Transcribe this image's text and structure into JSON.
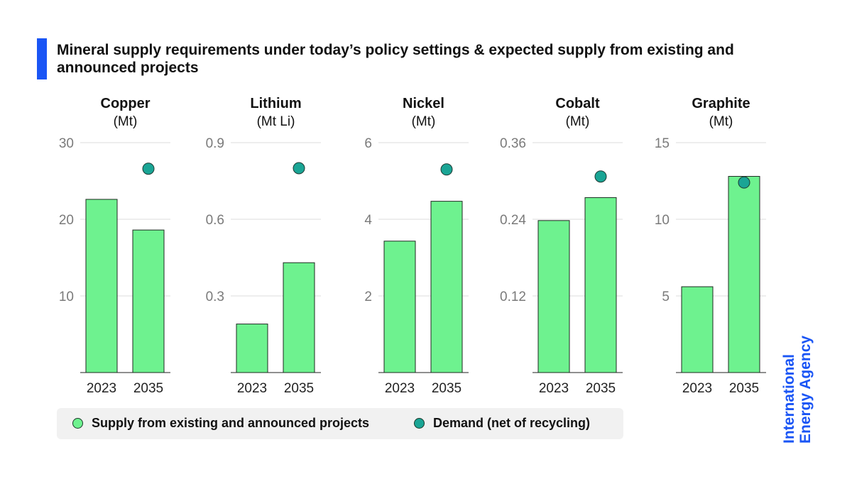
{
  "title": "Mineral supply requirements under today’s policy settings & expected supply from existing and announced projects",
  "brand": {
    "line1": "International",
    "line2": "Energy Agency"
  },
  "legend": [
    {
      "label": "Supply from existing and announced projects",
      "color": "#6ef28f"
    },
    {
      "label": "Demand (net of recycling)",
      "color": "#1aa595"
    }
  ],
  "colors": {
    "bar": "#6ef28f",
    "bar_stroke": "#1f2a22",
    "dot": "#1aa595",
    "dot_stroke": "#1f3a33",
    "grid": "#dddddd",
    "axis": "#222222"
  },
  "chart_data": [
    {
      "type": "bar",
      "title": "Copper",
      "unit": "(Mt)",
      "categories": [
        "2023",
        "2035"
      ],
      "series": [
        {
          "name": "Supply from existing and announced projects",
          "type": "bar",
          "values": [
            22.6,
            18.6
          ]
        },
        {
          "name": "Demand (net of recycling)",
          "type": "scatter",
          "values": [
            null,
            26.6
          ]
        }
      ],
      "ylim": [
        0,
        30
      ],
      "yticks": [
        10,
        20,
        30
      ],
      "tick_labels": [
        "10",
        "20",
        "30"
      ],
      "grid": true
    },
    {
      "type": "bar",
      "title": "Lithium",
      "unit": "(Mt Li)",
      "categories": [
        "2023",
        "2035"
      ],
      "series": [
        {
          "name": "Supply from existing and announced projects",
          "type": "bar",
          "values": [
            0.19,
            0.43
          ]
        },
        {
          "name": "Demand (net of recycling)",
          "type": "scatter",
          "values": [
            null,
            0.8
          ]
        }
      ],
      "ylim": [
        0,
        0.9
      ],
      "yticks": [
        0.3,
        0.6,
        0.9
      ],
      "tick_labels": [
        "0.3",
        "0.6",
        "0.9"
      ],
      "grid": true
    },
    {
      "type": "bar",
      "title": "Nickel",
      "unit": "(Mt)",
      "categories": [
        "2023",
        "2035"
      ],
      "series": [
        {
          "name": "Supply from existing and announced projects",
          "type": "bar",
          "values": [
            3.43,
            4.47
          ]
        },
        {
          "name": "Demand (net of recycling)",
          "type": "scatter",
          "values": [
            null,
            5.3
          ]
        }
      ],
      "ylim": [
        0,
        6
      ],
      "yticks": [
        2,
        4,
        6
      ],
      "tick_labels": [
        "2",
        "4",
        "6"
      ],
      "grid": true
    },
    {
      "type": "bar",
      "title": "Cobalt",
      "unit": "(Mt)",
      "categories": [
        "2023",
        "2035"
      ],
      "series": [
        {
          "name": "Supply from existing and announced projects",
          "type": "bar",
          "values": [
            0.238,
            0.274
          ]
        },
        {
          "name": "Demand (net of recycling)",
          "type": "scatter",
          "values": [
            null,
            0.307
          ]
        }
      ],
      "ylim": [
        0,
        0.36
      ],
      "yticks": [
        0.12,
        0.24,
        0.36
      ],
      "tick_labels": [
        "0.12",
        "0.24",
        "0.36"
      ],
      "grid": true
    },
    {
      "type": "bar",
      "title": "Graphite",
      "unit": "(Mt)",
      "categories": [
        "2023",
        "2035"
      ],
      "series": [
        {
          "name": "Supply from existing and announced projects",
          "type": "bar",
          "values": [
            5.6,
            12.8
          ]
        },
        {
          "name": "Demand (net of recycling)",
          "type": "scatter",
          "values": [
            null,
            12.4
          ]
        }
      ],
      "ylim": [
        0,
        15
      ],
      "yticks": [
        5,
        10,
        15
      ],
      "tick_labels": [
        "5",
        "10",
        "15"
      ],
      "grid": true
    }
  ]
}
